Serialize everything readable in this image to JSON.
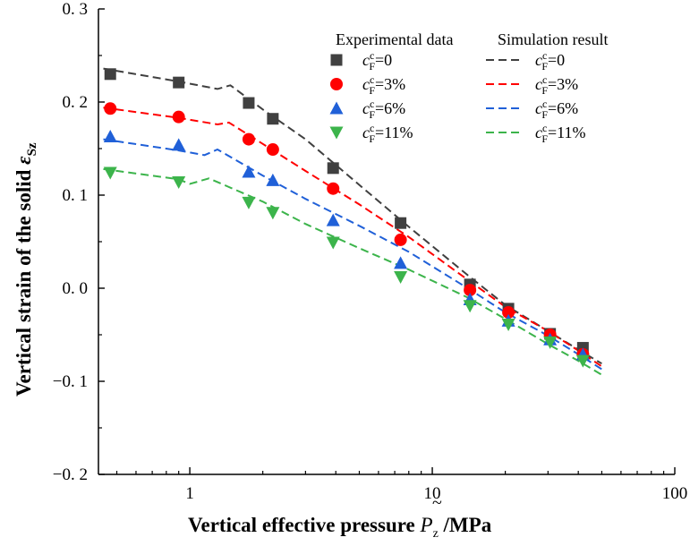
{
  "chart_data": {
    "type": "scatter",
    "xlabel": {
      "prefix": "Vertical effective pressure ",
      "symbol": "P",
      "accent": "~",
      "subscript": "z",
      "suffix": " /MPa"
    },
    "ylabel": {
      "prefix": "Vertical strain of  the solid ",
      "symbol": "ε",
      "subscript": "Sz"
    },
    "x_scale": "log",
    "xlim": [
      0.42,
      100
    ],
    "ylim": [
      -0.2,
      0.3
    ],
    "x_ticks": [
      {
        "value": 1,
        "label": "1"
      },
      {
        "value": 10,
        "label": "10"
      },
      {
        "value": 100,
        "label": "100"
      }
    ],
    "y_ticks": [
      {
        "value": 0.3,
        "label": "0. 3"
      },
      {
        "value": 0.2,
        "label": "0. 2"
      },
      {
        "value": 0.1,
        "label": "0. 1"
      },
      {
        "value": 0.0,
        "label": "0. 0"
      },
      {
        "value": -0.1,
        "label": "−0. 1"
      },
      {
        "value": -0.2,
        "label": "−0. 2"
      }
    ],
    "grid": false,
    "legend": {
      "placement": "top-right",
      "experimental_header": "Experimental data",
      "simulation_header": "Simulation result"
    },
    "series": [
      {
        "name": "0",
        "color": "#404040",
        "marker": "square",
        "experimental": {
          "x": [
            0.47,
            0.9,
            1.75,
            2.2,
            3.9,
            7.4,
            14.3,
            20.6,
            30.6,
            41.8
          ],
          "y": [
            0.23,
            0.221,
            0.199,
            0.182,
            0.129,
            0.07,
            0.004,
            -0.022,
            -0.049,
            -0.064
          ]
        },
        "simulation": {
          "x": [
            0.44,
            0.9,
            1.3,
            1.47,
            2.0,
            3.0,
            5.0,
            8.0,
            14.0,
            20.0,
            30.0,
            40.0,
            50.0
          ],
          "y": [
            0.236,
            0.222,
            0.214,
            0.218,
            0.192,
            0.16,
            0.111,
            0.066,
            0.014,
            -0.018,
            -0.046,
            -0.066,
            -0.081
          ]
        }
      },
      {
        "name": "3%",
        "color": "#ff0000",
        "marker": "circle",
        "experimental": {
          "x": [
            0.47,
            0.9,
            1.75,
            2.2,
            3.9,
            7.4,
            14.3,
            20.6,
            30.6,
            41.8
          ],
          "y": [
            0.193,
            0.184,
            0.16,
            0.149,
            0.107,
            0.052,
            -0.002,
            -0.026,
            -0.05,
            -0.071
          ]
        },
        "simulation": {
          "x": [
            0.44,
            0.9,
            1.3,
            1.45,
            2.0,
            3.0,
            5.0,
            8.0,
            14.0,
            20.0,
            30.0,
            40.0,
            50.0
          ],
          "y": [
            0.194,
            0.183,
            0.176,
            0.178,
            0.155,
            0.126,
            0.09,
            0.055,
            0.009,
            -0.02,
            -0.046,
            -0.067,
            -0.084
          ]
        }
      },
      {
        "name": "6%",
        "color": "#2060d8",
        "marker": "triangle-up",
        "experimental": {
          "x": [
            0.47,
            0.9,
            1.75,
            2.2,
            3.9,
            7.4,
            14.3,
            20.6,
            30.6,
            41.8
          ],
          "y": [
            0.163,
            0.154,
            0.125,
            0.116,
            0.073,
            0.027,
            -0.012,
            -0.035,
            -0.055,
            -0.071
          ]
        },
        "simulation": {
          "x": [
            0.44,
            0.9,
            1.15,
            1.3,
            2.0,
            3.0,
            5.0,
            8.0,
            14.0,
            20.0,
            30.0,
            40.0,
            50.0
          ],
          "y": [
            0.16,
            0.148,
            0.143,
            0.149,
            0.121,
            0.096,
            0.067,
            0.039,
            0.0,
            -0.026,
            -0.051,
            -0.071,
            -0.087
          ]
        }
      },
      {
        "name": "11%",
        "color": "#3cb44b",
        "marker": "triangle-down",
        "experimental": {
          "x": [
            0.47,
            0.9,
            1.75,
            2.2,
            3.9,
            7.4,
            14.3,
            20.6,
            30.6,
            41.8
          ],
          "y": [
            0.124,
            0.114,
            0.092,
            0.081,
            0.049,
            0.012,
            -0.019,
            -0.039,
            -0.058,
            -0.078
          ]
        },
        "simulation": {
          "x": [
            0.44,
            0.9,
            1.0,
            1.2,
            2.0,
            3.0,
            5.0,
            8.0,
            14.0,
            20.0,
            30.0,
            40.0,
            50.0
          ],
          "y": [
            0.128,
            0.117,
            0.112,
            0.118,
            0.093,
            0.069,
            0.043,
            0.02,
            -0.01,
            -0.033,
            -0.06,
            -0.078,
            -0.093
          ]
        }
      }
    ],
    "legend_symbol": {
      "base": "c",
      "sup": "c",
      "sub": "F"
    }
  }
}
